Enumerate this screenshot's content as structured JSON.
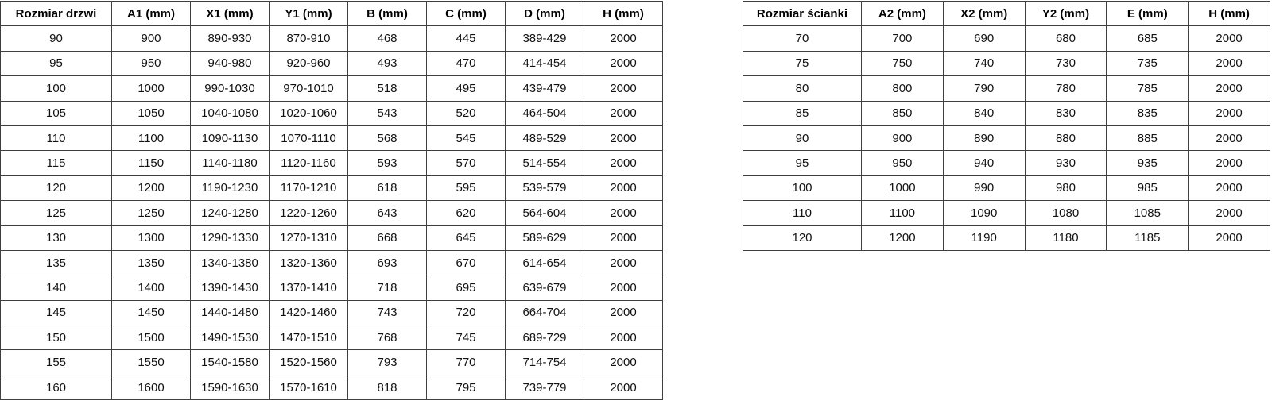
{
  "door_table": {
    "headers": [
      "Rozmiar drzwi",
      "A1 (mm)",
      "X1 (mm)",
      "Y1 (mm)",
      "B (mm)",
      "C (mm)",
      "D (mm)",
      "H (mm)"
    ],
    "rows": [
      [
        "90",
        "900",
        "890-930",
        "870-910",
        "468",
        "445",
        "389-429",
        "2000"
      ],
      [
        "95",
        "950",
        "940-980",
        "920-960",
        "493",
        "470",
        "414-454",
        "2000"
      ],
      [
        "100",
        "1000",
        "990-1030",
        "970-1010",
        "518",
        "495",
        "439-479",
        "2000"
      ],
      [
        "105",
        "1050",
        "1040-1080",
        "1020-1060",
        "543",
        "520",
        "464-504",
        "2000"
      ],
      [
        "110",
        "1100",
        "1090-1130",
        "1070-1110",
        "568",
        "545",
        "489-529",
        "2000"
      ],
      [
        "115",
        "1150",
        "1140-1180",
        "1120-1160",
        "593",
        "570",
        "514-554",
        "2000"
      ],
      [
        "120",
        "1200",
        "1190-1230",
        "1170-1210",
        "618",
        "595",
        "539-579",
        "2000"
      ],
      [
        "125",
        "1250",
        "1240-1280",
        "1220-1260",
        "643",
        "620",
        "564-604",
        "2000"
      ],
      [
        "130",
        "1300",
        "1290-1330",
        "1270-1310",
        "668",
        "645",
        "589-629",
        "2000"
      ],
      [
        "135",
        "1350",
        "1340-1380",
        "1320-1360",
        "693",
        "670",
        "614-654",
        "2000"
      ],
      [
        "140",
        "1400",
        "1390-1430",
        "1370-1410",
        "718",
        "695",
        "639-679",
        "2000"
      ],
      [
        "145",
        "1450",
        "1440-1480",
        "1420-1460",
        "743",
        "720",
        "664-704",
        "2000"
      ],
      [
        "150",
        "1500",
        "1490-1530",
        "1470-1510",
        "768",
        "745",
        "689-729",
        "2000"
      ],
      [
        "155",
        "1550",
        "1540-1580",
        "1520-1560",
        "793",
        "770",
        "714-754",
        "2000"
      ],
      [
        "160",
        "1600",
        "1590-1630",
        "1570-1610",
        "818",
        "795",
        "739-779",
        "2000"
      ]
    ]
  },
  "wall_table": {
    "headers": [
      "Rozmiar ścianki",
      "A2 (mm)",
      "X2 (mm)",
      "Y2 (mm)",
      "E (mm)",
      "H (mm)"
    ],
    "rows": [
      [
        "70",
        "700",
        "690",
        "680",
        "685",
        "2000"
      ],
      [
        "75",
        "750",
        "740",
        "730",
        "735",
        "2000"
      ],
      [
        "80",
        "800",
        "790",
        "780",
        "785",
        "2000"
      ],
      [
        "85",
        "850",
        "840",
        "830",
        "835",
        "2000"
      ],
      [
        "90",
        "900",
        "890",
        "880",
        "885",
        "2000"
      ],
      [
        "95",
        "950",
        "940",
        "930",
        "935",
        "2000"
      ],
      [
        "100",
        "1000",
        "990",
        "980",
        "985",
        "2000"
      ],
      [
        "110",
        "1100",
        "1090",
        "1080",
        "1085",
        "2000"
      ],
      [
        "120",
        "1200",
        "1190",
        "1180",
        "1185",
        "2000"
      ]
    ]
  },
  "colors": {
    "border": "#3f3f3f",
    "text": "#111111",
    "background": "#ffffff"
  }
}
